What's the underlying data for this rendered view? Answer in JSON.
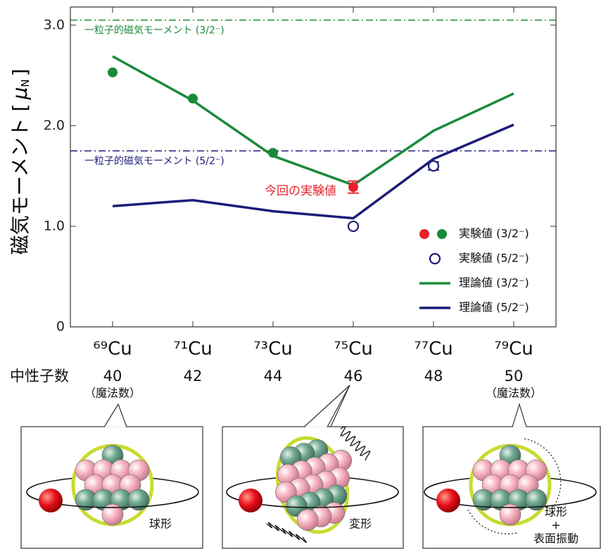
{
  "chart_data": {
    "type": "line",
    "ylabel": [
      "磁気モーメント [",
      "μ",
      "N",
      "]"
    ],
    "categories": [
      "⁶⁹Cu",
      "⁷¹Cu",
      "⁷³Cu",
      "⁷⁵Cu",
      "⁷⁷Cu",
      "⁷⁹Cu"
    ],
    "ylim": [
      0,
      3.18
    ],
    "yticks": [
      0,
      {
        "value": 1,
        "label": "1.0"
      },
      {
        "value": 2,
        "label": "2.0"
      },
      {
        "value": 3,
        "label": "3.0"
      }
    ],
    "reference_lines": [
      {
        "value": 3.05,
        "label": "一粒子的磁気モーメント (3/2⁻)",
        "color": "#1a8a3a"
      },
      {
        "value": 1.75,
        "label": "一粒子的磁気モーメント (5/2⁻)",
        "color": "#1c1c7a"
      }
    ],
    "series": [
      {
        "name": "実験値 (3/2⁻)",
        "style": "dot",
        "color": "#1a8a3a",
        "point_colors": [
          "#1a8a3a",
          "#1a8a3a",
          "#1a8a3a",
          "#e8202a",
          null,
          null
        ],
        "values": [
          2.53,
          2.27,
          1.73,
          1.39,
          null,
          null
        ],
        "errors": [
          null,
          null,
          null,
          0.06,
          null,
          null
        ]
      },
      {
        "name": "実験値 (5/2⁻)",
        "style": "open",
        "color": "#1c1c7a",
        "values": [
          null,
          null,
          null,
          1.0,
          1.6,
          null
        ],
        "errors": [
          null,
          null,
          null,
          null,
          0.04,
          null
        ]
      },
      {
        "name": "理論値 (3/2⁻)",
        "style": "line",
        "color": "#1a8a3a",
        "values": [
          2.69,
          2.25,
          1.7,
          1.41,
          1.95,
          2.32
        ]
      },
      {
        "name": "理論値 (5/2⁻)",
        "style": "line",
        "color": "#1c1c7a",
        "values": [
          1.2,
          1.26,
          1.15,
          1.08,
          1.67,
          2.01
        ]
      }
    ],
    "annotation": {
      "text": "今回の実験値",
      "color": "#e8202a"
    },
    "neutron_label": "中性子数",
    "neutrons": [
      {
        "n": 40,
        "note": "（魔法数）"
      },
      {
        "n": 42
      },
      {
        "n": 44
      },
      {
        "n": 46
      },
      {
        "n": 48
      },
      {
        "n": 50,
        "note": "（魔法数）"
      }
    ],
    "diagrams": [
      {
        "label": [
          "球形"
        ]
      },
      {
        "label": [
          "変形"
        ]
      },
      {
        "label": [
          "球形",
          "+",
          "表面振動"
        ]
      }
    ]
  }
}
